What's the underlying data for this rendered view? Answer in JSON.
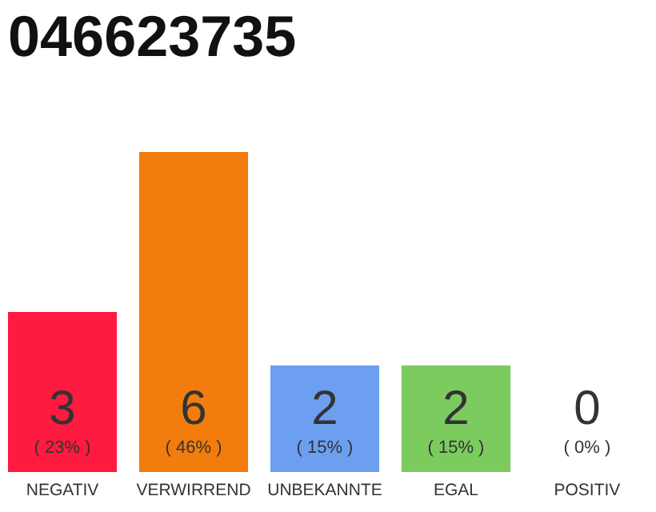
{
  "chart_data": {
    "type": "bar",
    "title": "046623735",
    "categories": [
      "NEGATIV",
      "VERWIRREND",
      "UNBEKANNTE",
      "EGAL",
      "POSITIV"
    ],
    "values": [
      3,
      6,
      2,
      2,
      0
    ],
    "colors": [
      "#ff1a3f",
      "#f27d0c",
      "#6c9ff0",
      "#7ccb5e",
      "#3fa535"
    ],
    "ylim": [
      0,
      6
    ],
    "tick_labels": "x",
    "grid": false,
    "data_labels": true,
    "annotations": [
      {
        "text": "( 23% )",
        "x": "NEGATIV",
        "y": 0
      },
      {
        "text": "( 46% )",
        "x": "VERWIRREND",
        "y": 0
      },
      {
        "text": "( 15% )",
        "x": "UNBEKANNTE",
        "y": 0
      },
      {
        "text": "( 15% )",
        "x": "EGAL",
        "y": 0
      },
      {
        "text": "( 0% )",
        "x": "POSITIV",
        "y": 0
      }
    ]
  }
}
